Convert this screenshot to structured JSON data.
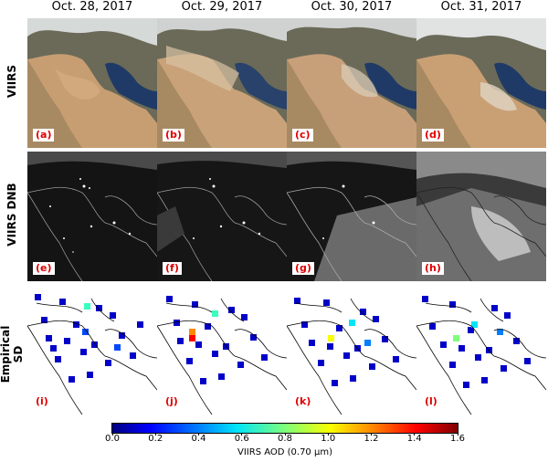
{
  "columns": [
    "Oct. 28, 2017",
    "Oct. 29, 2017",
    "Oct. 30, 2017",
    "Oct. 31, 2017"
  ],
  "rows": [
    {
      "label": "VIIRS",
      "panels": [
        "(a)",
        "(b)",
        "(c)",
        "(d)"
      ]
    },
    {
      "label": "VIIRS DNB",
      "panels": [
        "(e)",
        "(f)",
        "(g)",
        "(h)"
      ]
    },
    {
      "label_line1": "Empirical",
      "label_line2": "SD",
      "panels": [
        "(i)",
        "(j)",
        "(k)",
        "(l)"
      ]
    }
  ],
  "colorbar": {
    "label": "VIIRS AOD (0.70 µm)",
    "ticks": [
      "0.0",
      "0.2",
      "0.4",
      "0.6",
      "0.8",
      "1.0",
      "1.2",
      "1.4",
      "1.6"
    ],
    "min": 0.0,
    "max": 1.6,
    "colormap": [
      "#00007f",
      "#0000ff",
      "#0080ff",
      "#00e4f8",
      "#7dff7a",
      "#f9ff00",
      "#ff8a00",
      "#ff0000",
      "#7f0000"
    ]
  },
  "colors": {
    "panel_label": "#e00000",
    "land": "#c79e72",
    "sea": "#1f3a66",
    "night": "#1a1a1a"
  }
}
